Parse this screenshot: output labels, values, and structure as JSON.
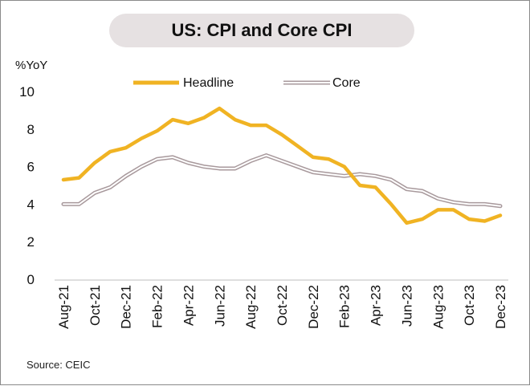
{
  "title": "US: CPI and Core CPI",
  "source": "Source: CEIC",
  "chart_data": {
    "type": "line",
    "ylabel": "%YoY",
    "ylim": [
      0,
      10
    ],
    "yticks": [
      0,
      2,
      4,
      6,
      8,
      10
    ],
    "x": [
      "Aug-21",
      "Sep-21",
      "Oct-21",
      "Nov-21",
      "Dec-21",
      "Jan-22",
      "Feb-22",
      "Mar-22",
      "Apr-22",
      "May-22",
      "Jun-22",
      "Jul-22",
      "Aug-22",
      "Sep-22",
      "Oct-22",
      "Nov-22",
      "Dec-22",
      "Jan-23",
      "Feb-23",
      "Mar-23",
      "Apr-23",
      "May-23",
      "Jun-23",
      "Jul-23",
      "Aug-23",
      "Sep-23",
      "Oct-23",
      "Nov-23",
      "Dec-23"
    ],
    "xtick_labels": [
      "Aug-21",
      "Oct-21",
      "Dec-21",
      "Feb-22",
      "Apr-22",
      "Jun-22",
      "Aug-22",
      "Oct-22",
      "Dec-22",
      "Feb-23",
      "Apr-23",
      "Jun-23",
      "Aug-23",
      "Oct-23",
      "Dec-23"
    ],
    "legend_position": "top",
    "grid": false,
    "series": [
      {
        "name": "Headline",
        "color": "#f0b323",
        "values": [
          5.3,
          5.4,
          6.2,
          6.8,
          7.0,
          7.5,
          7.9,
          8.5,
          8.3,
          8.6,
          9.1,
          8.5,
          8.2,
          8.2,
          7.7,
          7.1,
          6.5,
          6.4,
          6.0,
          5.0,
          4.9,
          4.0,
          3.0,
          3.2,
          3.7,
          3.7,
          3.2,
          3.1,
          3.4
        ]
      },
      {
        "name": "Core",
        "color": "#a8999c",
        "values": [
          4.0,
          4.0,
          4.6,
          4.9,
          5.5,
          6.0,
          6.4,
          6.5,
          6.2,
          6.0,
          5.9,
          5.9,
          6.3,
          6.6,
          6.3,
          6.0,
          5.7,
          5.6,
          5.5,
          5.6,
          5.5,
          5.3,
          4.8,
          4.7,
          4.3,
          4.1,
          4.0,
          4.0,
          3.9
        ]
      }
    ]
  }
}
